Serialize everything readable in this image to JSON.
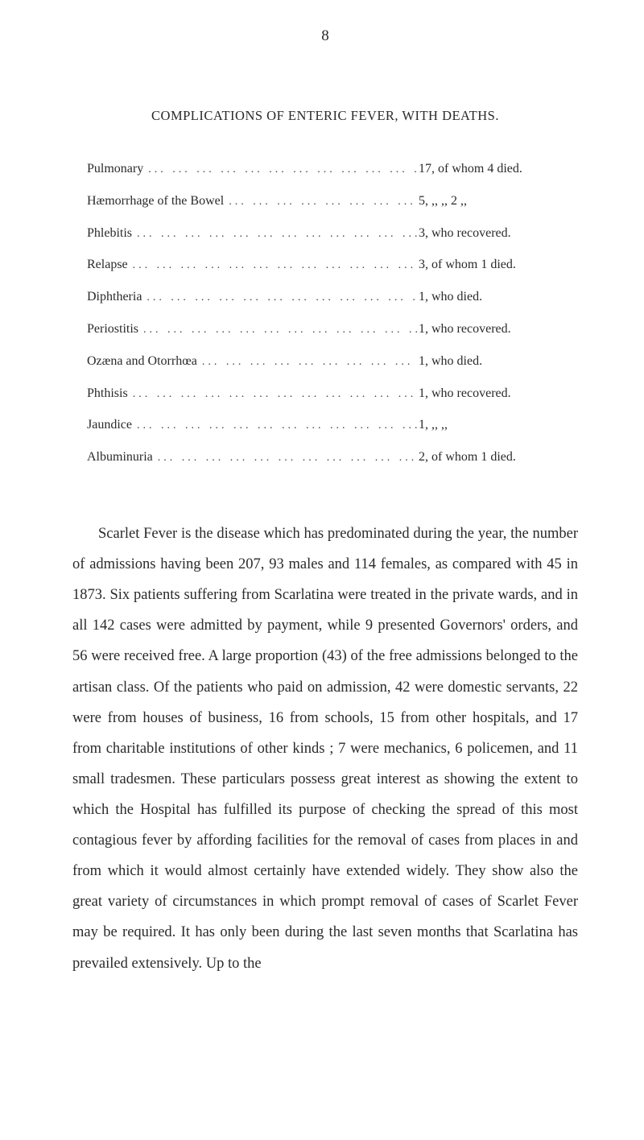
{
  "page_number": "8",
  "section_title": "COMPLICATIONS OF ENTERIC FEVER, WITH DEATHS.",
  "complications": [
    {
      "label": "Pulmonary",
      "value": "17, of whom 4 died."
    },
    {
      "label": "Hæmorrhage of the Bowel",
      "value": "5,   ,,     ,,   2   ,,"
    },
    {
      "label": "Phlebitis",
      "value": "3, who recovered."
    },
    {
      "label": "Relapse",
      "value": "3, of whom 1 died."
    },
    {
      "label": "Diphtheria",
      "value": "1, who died."
    },
    {
      "label": "Periostitis",
      "value": "1, who recovered."
    },
    {
      "label": "Ozæna and Otorrhœa",
      "value": "1, who died."
    },
    {
      "label": "Phthisis",
      "value": "1, who recovered."
    },
    {
      "label": "Jaundice",
      "value": "1,   ,,       ,,"
    },
    {
      "label": "Albuminuria",
      "value": "2, of whom 1 died."
    }
  ],
  "body_paragraph": "Scarlet Fever is the disease which has predominated during the year, the number of admissions having been 207, 93 males and 114 females, as compared with 45 in 1873. Six patients suffering from Scarlatina were treated in the private wards, and in all 142 cases were admitted by payment, while 9 presented Governors' orders, and 56 were received free. A large proportion (43) of the free admissions belonged to the artisan class. Of the patients who paid on admission, 42 were domestic servants, 22 were from houses of business, 16 from schools, 15 from other hospitals, and 17 from charitable institutions of other kinds ; 7 were mechanics, 6 policemen, and 11 small tradesmen. These particulars possess great interest as showing the extent to which the Hospital has fulfilled its purpose of checking the spread of this most contagious fever by affording facilities for the removal of cases from places in and from which it would almost certainly have extended widely. They show also the great variety of circumstances in which prompt removal of cases of Scarlet Fever may be required. It has only been during the last seven months that Scarlatina has prevailed extensively. Up to the"
}
